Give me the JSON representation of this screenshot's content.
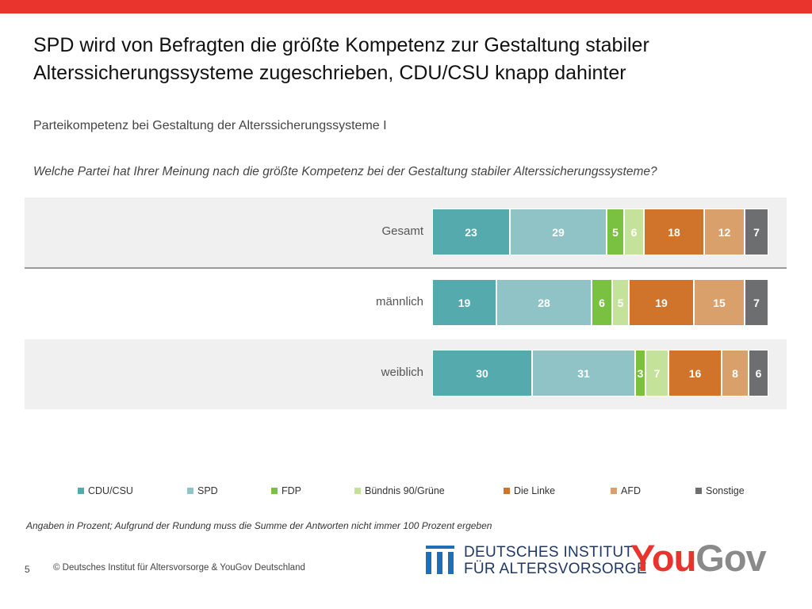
{
  "title": "SPD wird von Befragten die größte Kompetenz zur Gestaltung stabiler Alterssicherungssysteme zugeschrieben, CDU/CSU knapp dahinter",
  "subtitle": "Parteikompetenz bei Gestaltung der Alterssicherungssysteme I",
  "question": "Welche Partei hat Ihrer Meinung nach die größte Kompetenz bei der Gestaltung stabiler Alterssicherungssysteme?",
  "footnote": "Angaben in Prozent; Aufgrund der Rundung muss die Summe der Antworten nicht immer 100 Prozent ergeben",
  "page_number": "5",
  "copyright": "© Deutsches Institut für Altersvorsorge & YouGov Deutschland",
  "logos": {
    "dia_line1": "DEUTSCHES INSTITUT",
    "dia_line2": "FÜR ALTERSVORSORGE",
    "yougov_you": "You",
    "yougov_gov": "Gov"
  },
  "colors": {
    "accent_bar": "#e8342c",
    "band": "#f0f0f0"
  },
  "chart_data": {
    "type": "bar",
    "orientation": "horizontal",
    "stacked": true,
    "categories": [
      "Gesamt",
      "männlich",
      "weiblich"
    ],
    "series": [
      {
        "name": "CDU/CSU",
        "color": "#55aaae",
        "values": [
          23,
          19,
          30
        ]
      },
      {
        "name": "SPD",
        "color": "#8fc3c6",
        "values": [
          29,
          28,
          31
        ]
      },
      {
        "name": "FDP",
        "color": "#7ac142",
        "values": [
          5,
          6,
          3
        ]
      },
      {
        "name": "Bündnis 90/Grüne",
        "color": "#c5e29a",
        "values": [
          6,
          5,
          7
        ]
      },
      {
        "name": "Die Linke",
        "color": "#d0732b",
        "values": [
          18,
          19,
          16
        ]
      },
      {
        "name": "AFD",
        "color": "#d9a06b",
        "values": [
          12,
          15,
          8
        ]
      },
      {
        "name": "Sonstige",
        "color": "#6d6e70",
        "values": [
          7,
          7,
          6
        ]
      }
    ],
    "legend": "bottom",
    "xlim": [
      0,
      100
    ],
    "unit": "%"
  }
}
